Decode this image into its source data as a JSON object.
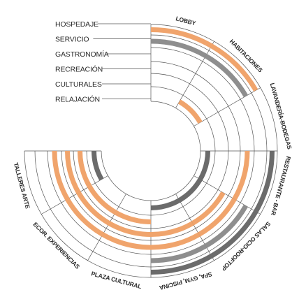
{
  "colors": {
    "hospedaje": "#f0a46c",
    "servicio": "#8e8e8e",
    "servicio_dark": "#6b6b6b",
    "line": "#555555",
    "text": "#2b2b2b"
  },
  "categories": [
    {
      "key": "hospedaje",
      "label": "HOSPEDAJE"
    },
    {
      "key": "servicio",
      "label": "SERVICIO"
    },
    {
      "key": "gastronomia",
      "label": "GASTRONOMÍA"
    },
    {
      "key": "recreacion",
      "label": "RECREACIÓN"
    },
    {
      "key": "culturales",
      "label": "CULTURALES"
    },
    {
      "key": "relajacion",
      "label": "RELAJACIÓN"
    }
  ],
  "areas": [
    {
      "label": "LOBBY"
    },
    {
      "label": "HABITACIONES"
    },
    {
      "label": "LAVANDERÍA-BODEGAS"
    },
    {
      "label": "RESTAURANTE - BAR"
    },
    {
      "label": "SALAS OCIO-ROOFTOP"
    },
    {
      "label": "SPA, GYM, PISCINA"
    },
    {
      "label": "PLAZA CULTURAL"
    },
    {
      "label": "ECOR. EXPERIENCIAS"
    },
    {
      "label": "TALLERES ARTE"
    }
  ],
  "arcs": [
    {
      "ring": 0,
      "from_area": 0,
      "to_area": 1,
      "color": "hospedaje"
    },
    {
      "ring": 1,
      "from_area": 0,
      "to_area": 0,
      "color": "servicio"
    },
    {
      "ring": 1,
      "from_area": 1,
      "to_area": 1,
      "color": "servicio"
    },
    {
      "ring": 5,
      "from_area": 1,
      "to_area": 1,
      "color": "hospedaje"
    },
    {
      "ring": 2,
      "from_area": 3,
      "to_area": 3,
      "color": "hospedaje"
    },
    {
      "ring": 0,
      "from_area": 3,
      "to_area": 5,
      "color": "servicio_dark"
    },
    {
      "ring": 1,
      "from_area": 4,
      "to_area": 4,
      "color": "servicio"
    },
    {
      "ring": 2,
      "from_area": 4,
      "to_area": 4,
      "color": "hospedaje"
    },
    {
      "ring": 3,
      "from_area": 4,
      "to_area": 4,
      "color": "hospedaje"
    },
    {
      "ring": 5,
      "from_area": 3,
      "to_area": 5,
      "color": "servicio_dark"
    },
    {
      "ring": 1,
      "from_area": 5,
      "to_area": 5,
      "color": "servicio"
    },
    {
      "ring": 2,
      "from_area": 5,
      "to_area": 5,
      "color": "hospedaje"
    },
    {
      "ring": 3,
      "from_area": 5,
      "to_area": 5,
      "color": "hospedaje"
    },
    {
      "ring": 2,
      "from_area": 6,
      "to_area": 8,
      "color": "hospedaje"
    },
    {
      "ring": 3,
      "from_area": 6,
      "to_area": 8,
      "color": "hospedaje"
    },
    {
      "ring": 4,
      "from_area": 6,
      "to_area": 8,
      "color": "hospedaje"
    },
    {
      "ring": 5,
      "from_area": 8,
      "to_area": 8,
      "color": "servicio_dark"
    }
  ]
}
